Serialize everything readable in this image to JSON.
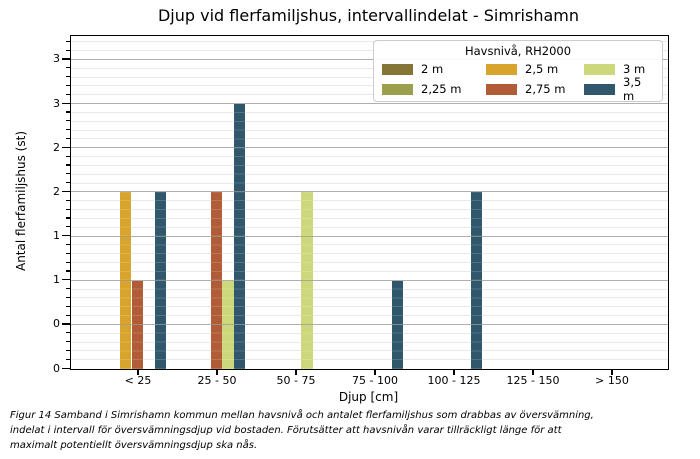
{
  "chart_data": {
    "type": "bar",
    "title": "Djup vid flerfamiljshus, intervallindelat - Simrishamn",
    "xlabel": "Djup [cm]",
    "ylabel": "Antal flerfamiljshus (st)",
    "categories": [
      "< 25",
      "25 - 50",
      "50 - 75",
      "75 - 100",
      "100 - 125",
      "125 - 150",
      "> 150"
    ],
    "legend": {
      "title": "Havsnivå, RH2000",
      "position": "upper right",
      "columns": 3
    },
    "series": [
      {
        "name": "2 m",
        "color": "#857536",
        "values": [
          0,
          0,
          0,
          0,
          0,
          0,
          0
        ]
      },
      {
        "name": "2,25 m",
        "color": "#9aa04b",
        "values": [
          0,
          0,
          0,
          0,
          0,
          0,
          0
        ]
      },
      {
        "name": "2,5 m",
        "color": "#d9a42b",
        "values": [
          2,
          0,
          0,
          0,
          0,
          0,
          0
        ]
      },
      {
        "name": "2,75 m",
        "color": "#b15c36",
        "values": [
          1,
          2,
          0,
          0,
          0,
          0,
          0
        ]
      },
      {
        "name": "3 m",
        "color": "#ccd87b",
        "values": [
          0,
          1,
          2,
          0,
          0,
          0,
          0
        ]
      },
      {
        "name": "3,5 m",
        "color": "#31576c",
        "values": [
          2,
          3,
          0,
          1,
          2,
          0,
          0
        ]
      }
    ],
    "y_axis": {
      "tick_values": [
        0,
        0.5,
        1,
        1.5,
        2,
        2.5,
        3,
        3.5
      ],
      "tick_labels": [
        "0",
        "0",
        "1",
        "1",
        "2",
        "2",
        "3",
        "3"
      ],
      "minor_step": 0.1,
      "ylim": [
        0,
        3.77
      ],
      "grid": "horizontal major + minor"
    },
    "caption_lines": [
      "Figur 14 Samband i Simrishamn kommun mellan havsnivå och antalet flerfamiljshus som drabbas av översvämning,",
      "indelat i intervall för översvämningsdjup vid bostaden. Förutsätter att havsnivån varar tillräckligt länge för att",
      "maximalt potentiellt översvämningsdjup ska nås."
    ]
  }
}
